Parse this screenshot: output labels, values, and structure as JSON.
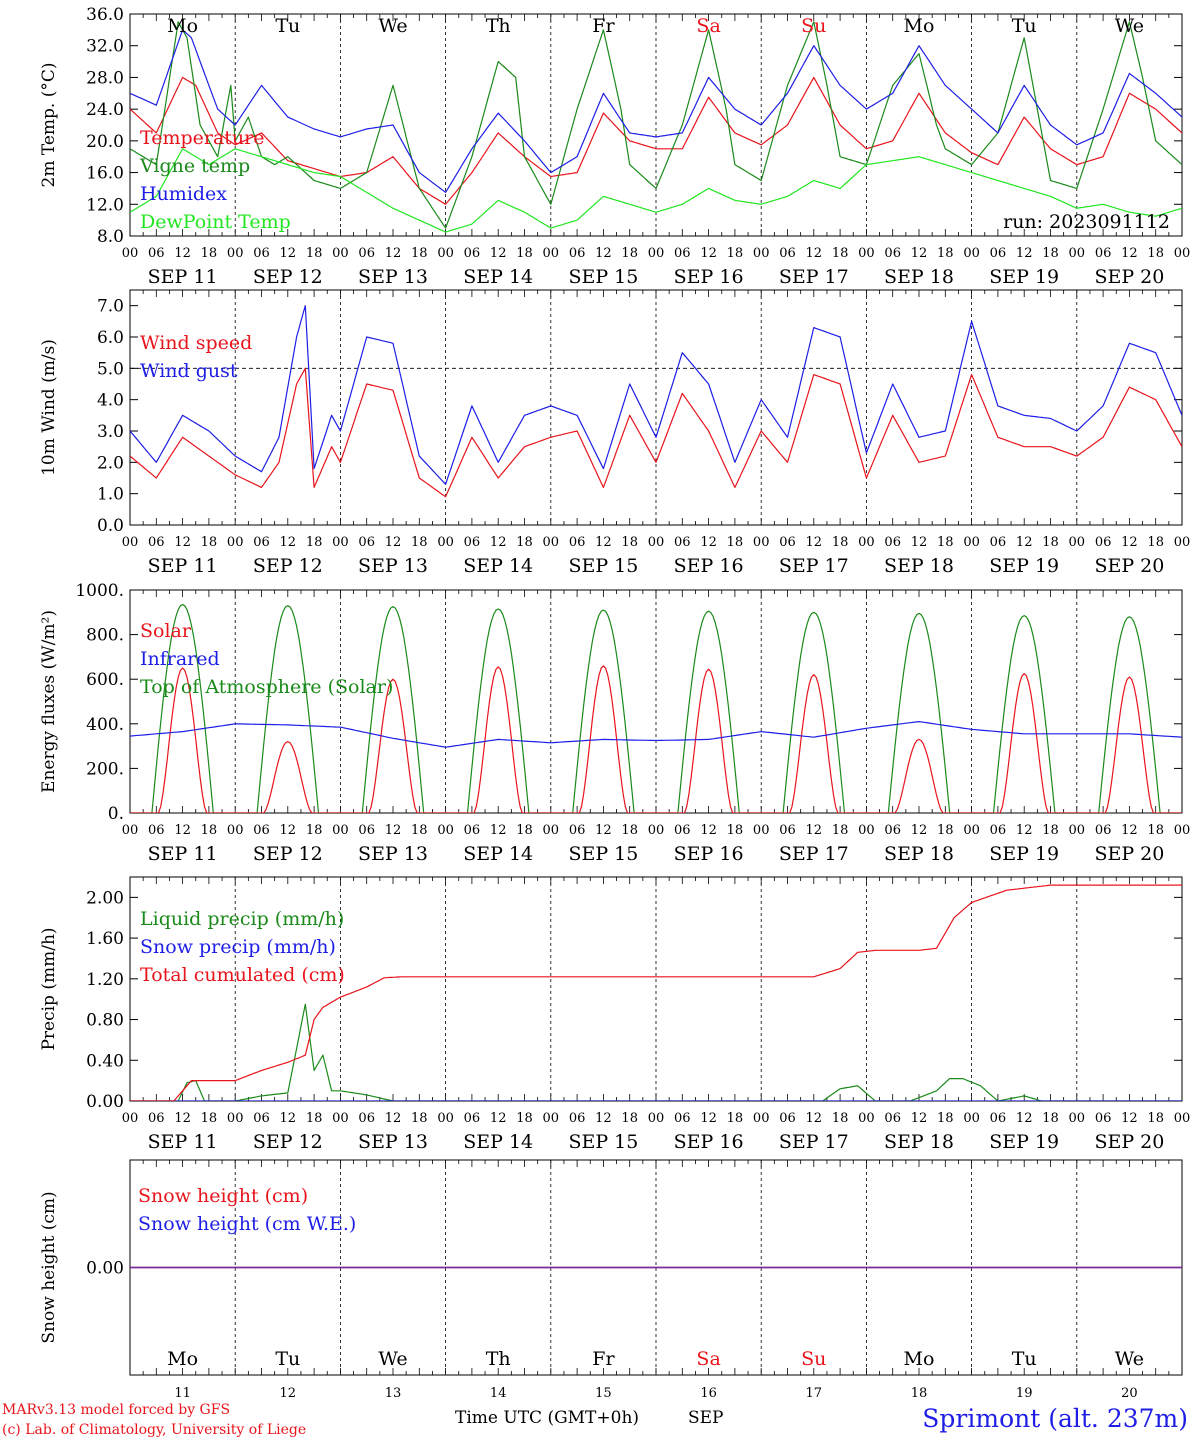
{
  "footer": {
    "model": "MARv3.13 model forced by GFS",
    "credit": "(c) Lab. of Climatology, University of Liege",
    "xlabel": "Time UTC (GMT+0h)",
    "month": "SEP",
    "station": "Sprimont (alt. 237m)"
  },
  "run_label": "run: 2023091112",
  "colors": {
    "red": "#e8141c",
    "blue": "#1e1ee6",
    "green": "#1a8a1a",
    "lightgreen": "#22e622",
    "purple": "#7a2a9a",
    "weekend": "#e8141c",
    "frame": "#000000"
  },
  "days": [
    {
      "date": "SEP 11",
      "day": "11",
      "dow": "Mo",
      "weekend": false
    },
    {
      "date": "SEP 12",
      "day": "12",
      "dow": "Tu",
      "weekend": false
    },
    {
      "date": "SEP 13",
      "day": "13",
      "dow": "We",
      "weekend": false
    },
    {
      "date": "SEP 14",
      "day": "14",
      "dow": "Th",
      "weekend": false
    },
    {
      "date": "SEP 15",
      "day": "15",
      "dow": "Fr",
      "weekend": false
    },
    {
      "date": "SEP 16",
      "day": "16",
      "dow": "Sa",
      "weekend": true
    },
    {
      "date": "SEP 17",
      "day": "17",
      "dow": "Su",
      "weekend": true
    },
    {
      "date": "SEP 18",
      "day": "18",
      "dow": "Mo",
      "weekend": false
    },
    {
      "date": "SEP 19",
      "day": "19",
      "dow": "Tu",
      "weekend": false
    },
    {
      "date": "SEP 20",
      "day": "20",
      "dow": "We",
      "weekend": false
    }
  ],
  "hour_ticks": [
    "00",
    "06",
    "12",
    "18"
  ],
  "chart_data": [
    {
      "type": "line",
      "ylabel": "2m Temp. (°C)",
      "ylim": [
        8,
        36
      ],
      "yticks": [
        "8.0",
        "12.0",
        "16.0",
        "20.0",
        "24.0",
        "28.0",
        "32.0",
        "36.0"
      ],
      "legend_position": "left",
      "x_unit": "hours since SEP 11 00 UTC",
      "series": [
        {
          "name": "Temperature",
          "color": "red",
          "x": [
            0,
            6,
            12,
            15,
            20,
            24,
            30,
            36,
            42,
            48,
            54,
            60,
            66,
            72,
            78,
            84,
            90,
            96,
            102,
            108,
            114,
            120,
            126,
            132,
            138,
            144,
            150,
            156,
            162,
            168,
            174,
            180,
            186,
            192,
            198,
            204,
            210,
            216,
            222,
            228,
            234,
            240
          ],
          "y": [
            24,
            21,
            28,
            27,
            21,
            19.5,
            21,
            17.5,
            16.5,
            15.5,
            16,
            18,
            14,
            12,
            16,
            21,
            18,
            15.5,
            16,
            23.5,
            20,
            19,
            19,
            25.5,
            21,
            19.5,
            22,
            28,
            22,
            19,
            20,
            26,
            21,
            18.5,
            17,
            23,
            19,
            17,
            18,
            26,
            24,
            21
          ]
        },
        {
          "name": "Vigne temp",
          "color": "green",
          "x": [
            0,
            6,
            11,
            13,
            16,
            20,
            23,
            24,
            27,
            30,
            33,
            36,
            42,
            48,
            54,
            60,
            66,
            72,
            78,
            84,
            88,
            90,
            96,
            102,
            108,
            112,
            114,
            120,
            126,
            132,
            136,
            138,
            144,
            150,
            156,
            159,
            162,
            168,
            174,
            180,
            184,
            186,
            192,
            198,
            204,
            207,
            210,
            216,
            222,
            228,
            231,
            234,
            240
          ],
          "y": [
            19,
            17,
            35,
            33,
            22,
            18,
            27,
            20,
            23,
            18,
            17,
            18,
            15,
            14,
            16,
            27,
            14,
            9,
            18,
            30,
            28,
            18,
            12,
            24,
            34,
            24,
            17,
            14,
            22,
            34,
            24,
            17,
            15,
            27,
            35,
            27,
            18,
            17,
            27,
            31,
            22,
            19,
            17,
            21,
            33,
            24,
            15,
            14,
            24,
            35,
            28,
            20,
            17
          ]
        },
        {
          "name": "Humidex",
          "color": "blue",
          "x": [
            0,
            6,
            12,
            14,
            20,
            24,
            30,
            36,
            42,
            48,
            54,
            60,
            66,
            72,
            78,
            84,
            90,
            96,
            102,
            108,
            114,
            120,
            126,
            132,
            138,
            144,
            150,
            156,
            162,
            168,
            174,
            180,
            186,
            192,
            198,
            204,
            210,
            216,
            222,
            228,
            234,
            240
          ],
          "y": [
            26,
            24.5,
            34,
            33,
            24,
            22,
            27,
            23,
            21.5,
            20.5,
            21.5,
            22,
            16,
            13.5,
            19,
            23.5,
            20,
            16,
            18,
            26,
            21,
            20.5,
            21,
            28,
            24,
            22,
            26,
            32,
            27,
            24,
            26,
            32,
            27,
            24,
            21,
            27,
            22,
            19.5,
            21,
            28.5,
            26,
            23
          ]
        },
        {
          "name": "DewPoint Temp",
          "color": "lightgreen",
          "x": [
            0,
            6,
            12,
            18,
            24,
            30,
            36,
            42,
            48,
            54,
            60,
            66,
            72,
            78,
            84,
            90,
            96,
            102,
            108,
            114,
            120,
            126,
            132,
            138,
            144,
            150,
            156,
            162,
            168,
            174,
            180,
            186,
            192,
            198,
            204,
            210,
            216,
            222,
            228,
            234,
            240
          ],
          "y": [
            11,
            13,
            19,
            17,
            19,
            18,
            17,
            16,
            15.5,
            13.5,
            11.5,
            10,
            8.5,
            9.5,
            12.5,
            11,
            9,
            10,
            13,
            12,
            11,
            12,
            14,
            12.5,
            12,
            13,
            15,
            14,
            17,
            17.5,
            18,
            17,
            16,
            15,
            14,
            13,
            11.5,
            12,
            11,
            10.5,
            11.5
          ]
        }
      ]
    },
    {
      "type": "line",
      "ylabel": "10m Wind (m/s)",
      "ylim": [
        0,
        7.5
      ],
      "yticks": [
        "0.0",
        "1.0",
        "2.0",
        "3.0",
        "4.0",
        "5.0",
        "6.0",
        "7.0"
      ],
      "reference_line": 5,
      "legend_position": "left",
      "x_unit": "hours since SEP 11 00 UTC",
      "series": [
        {
          "name": "Wind speed",
          "color": "red",
          "x": [
            0,
            6,
            12,
            18,
            24,
            30,
            34,
            38,
            40,
            42,
            46,
            48,
            54,
            60,
            66,
            72,
            78,
            84,
            90,
            96,
            102,
            108,
            114,
            120,
            126,
            132,
            138,
            144,
            150,
            156,
            162,
            168,
            174,
            180,
            186,
            192,
            198,
            204,
            210,
            216,
            222,
            228,
            234,
            240
          ],
          "y": [
            2.2,
            1.5,
            2.8,
            2.2,
            1.6,
            1.2,
            2.0,
            4.5,
            5.0,
            1.2,
            2.5,
            2.0,
            4.5,
            4.3,
            1.5,
            0.9,
            2.8,
            1.5,
            2.5,
            2.8,
            3.0,
            1.2,
            3.5,
            2.0,
            4.2,
            3.0,
            1.2,
            3.0,
            2.0,
            4.8,
            4.5,
            1.5,
            3.5,
            2.0,
            2.2,
            4.8,
            2.8,
            2.5,
            2.5,
            2.2,
            2.8,
            4.4,
            4.0,
            2.5
          ]
        },
        {
          "name": "Wind gust",
          "color": "blue",
          "x": [
            0,
            6,
            12,
            18,
            24,
            30,
            34,
            38,
            40,
            42,
            46,
            48,
            54,
            60,
            66,
            72,
            78,
            84,
            90,
            96,
            102,
            108,
            114,
            120,
            126,
            132,
            138,
            144,
            150,
            156,
            162,
            168,
            174,
            180,
            186,
            192,
            198,
            204,
            210,
            216,
            222,
            228,
            234,
            240
          ],
          "y": [
            3.0,
            2.0,
            3.5,
            3.0,
            2.2,
            1.7,
            2.8,
            6.0,
            7.0,
            1.8,
            3.5,
            3.0,
            6.0,
            5.8,
            2.2,
            1.3,
            3.8,
            2.0,
            3.5,
            3.8,
            3.5,
            1.8,
            4.5,
            2.8,
            5.5,
            4.5,
            2.0,
            4.0,
            2.8,
            6.3,
            6.0,
            2.3,
            4.5,
            2.8,
            3.0,
            6.5,
            3.8,
            3.5,
            3.4,
            3.0,
            3.8,
            5.8,
            5.5,
            3.5
          ]
        }
      ]
    },
    {
      "type": "line",
      "ylabel": "Energy fluxes (W/m²)",
      "ylim": [
        0,
        1000
      ],
      "yticks": [
        "0.",
        "200.",
        "400.",
        "600.",
        "800.",
        "1000."
      ],
      "legend_position": "left",
      "x_unit": "hours since SEP 11 00 UTC",
      "solar_peaks": [
        650,
        320,
        600,
        655,
        660,
        645,
        620,
        330,
        625,
        610
      ],
      "toa_peaks": [
        935,
        930,
        925,
        915,
        910,
        905,
        900,
        895,
        885,
        880
      ],
      "series": [
        {
          "name": "Solar",
          "color": "red"
        },
        {
          "name": "Infrared",
          "color": "blue",
          "x": [
            0,
            12,
            24,
            36,
            48,
            60,
            72,
            84,
            96,
            108,
            120,
            132,
            144,
            156,
            168,
            180,
            192,
            204,
            216,
            228,
            240
          ],
          "y": [
            345,
            365,
            400,
            395,
            385,
            335,
            295,
            330,
            315,
            330,
            325,
            330,
            365,
            340,
            380,
            410,
            375,
            355,
            355,
            355,
            340
          ]
        },
        {
          "name": "Top of Atmosphere (Solar)",
          "color": "green"
        }
      ]
    },
    {
      "type": "line",
      "ylabel": "Precip (mm/h)",
      "ylim": [
        0,
        2.2
      ],
      "yticks": [
        "0.00",
        "0.40",
        "0.80",
        "1.20",
        "1.60",
        "2.00"
      ],
      "legend_position": "left",
      "x_unit": "hours since SEP 11 00 UTC",
      "series": [
        {
          "name": "Liquid precip (mm/h)",
          "color": "green",
          "x": [
            0,
            11,
            13,
            15,
            17,
            24,
            30,
            36,
            40,
            42,
            44,
            46,
            48,
            54,
            60,
            70,
            158,
            162,
            166,
            170,
            178,
            184,
            187,
            190,
            194,
            198,
            204,
            208,
            240
          ],
          "y": [
            0,
            0,
            0.18,
            0.2,
            0,
            0,
            0.05,
            0.08,
            0.95,
            0.3,
            0.45,
            0.1,
            0.1,
            0.06,
            0,
            0,
            0,
            0.12,
            0.15,
            0,
            0,
            0.1,
            0.22,
            0.22,
            0.15,
            0,
            0.05,
            0,
            0
          ]
        },
        {
          "name": "Snow precip (mm/h)",
          "color": "blue",
          "x": [
            0,
            240
          ],
          "y": [
            0,
            0
          ]
        },
        {
          "name": "Total cumulated (cm)",
          "color": "red",
          "x": [
            0,
            10,
            14,
            24,
            30,
            36,
            40,
            42,
            44,
            48,
            54,
            58,
            62,
            96,
            144,
            156,
            162,
            166,
            170,
            180,
            184,
            188,
            192,
            200,
            210,
            240
          ],
          "y": [
            0,
            0,
            0.2,
            0.2,
            0.3,
            0.38,
            0.45,
            0.8,
            0.92,
            1.02,
            1.12,
            1.21,
            1.22,
            1.22,
            1.22,
            1.22,
            1.3,
            1.46,
            1.48,
            1.48,
            1.5,
            1.8,
            1.95,
            2.07,
            2.12,
            2.12
          ]
        }
      ]
    },
    {
      "type": "line",
      "ylabel": "Snow height (cm)",
      "ylim": [
        -1,
        1
      ],
      "yticks": [
        "0.00"
      ],
      "legend_position": "left",
      "series": [
        {
          "name": "Snow height (cm)",
          "color": "red",
          "x": [
            0,
            240
          ],
          "y": [
            0,
            0
          ]
        },
        {
          "name": "Snow height (cm W.E.)",
          "color": "blue",
          "x": [
            0,
            240
          ],
          "y": [
            0,
            0
          ]
        }
      ]
    }
  ]
}
